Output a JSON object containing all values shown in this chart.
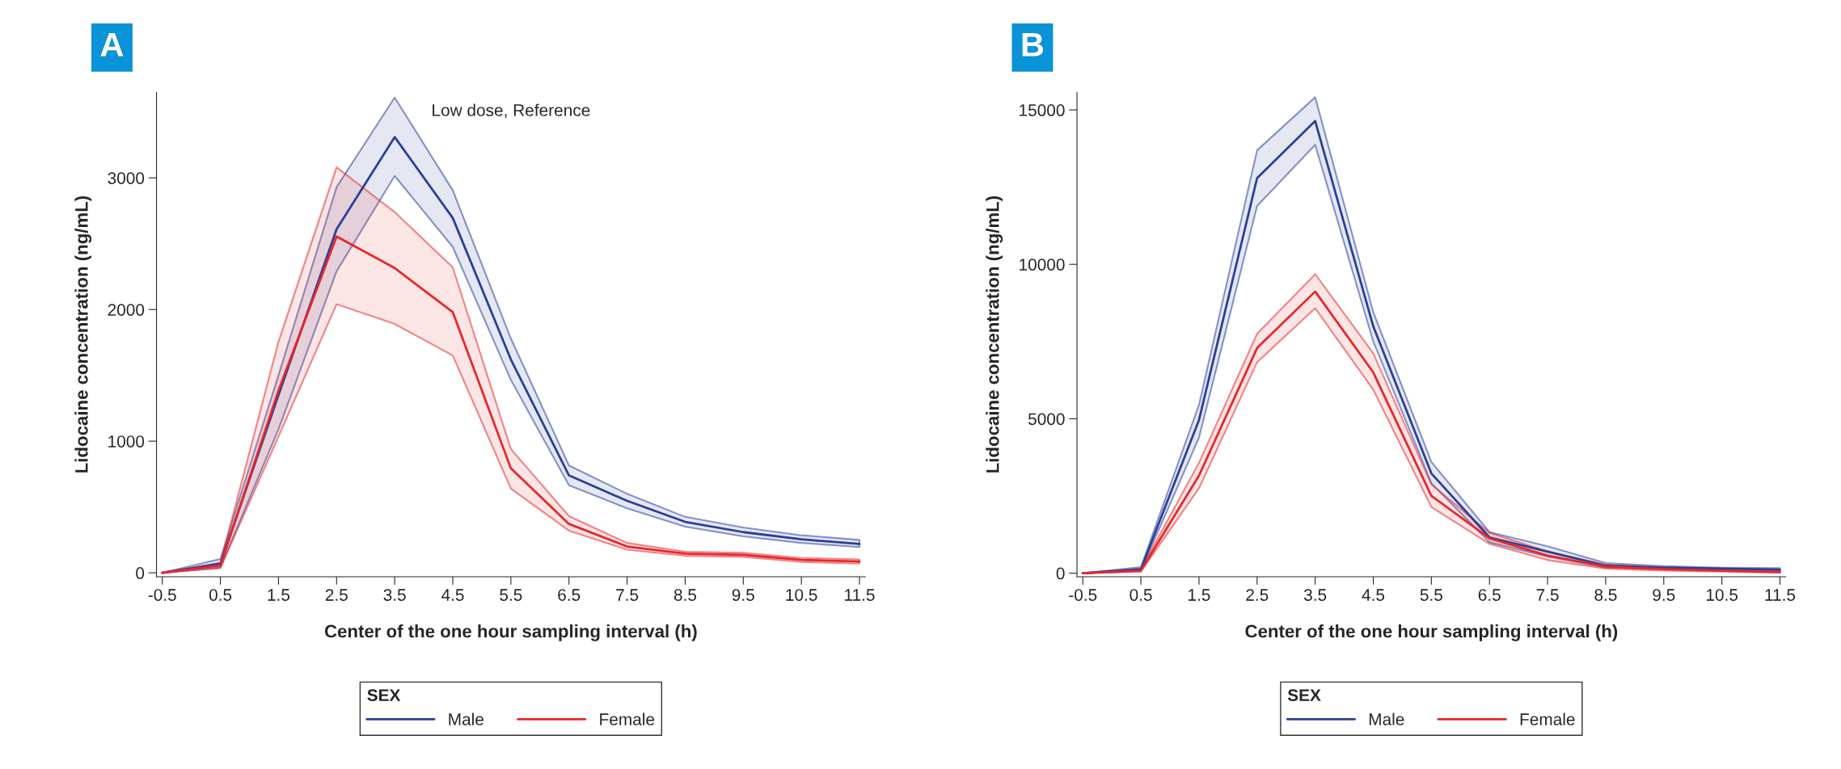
{
  "chart_data": [
    {
      "type": "line",
      "title": "A",
      "xlabel": "Center of the one hour sampling interval (h)",
      "ylabel": "Lidocaine concentration (ng/mL)",
      "legend_title": "SEX",
      "legend": "bottom",
      "annotations": [
        "Low dose, Reference"
      ],
      "x": [
        -0.5,
        0.5,
        1.5,
        2.5,
        3.5,
        4.5,
        5.5,
        6.5,
        7.5,
        8.5,
        9.5,
        10.5,
        11.5
      ],
      "xlim": [
        -0.6,
        11.6
      ],
      "xticks": [
        -0.5,
        0.5,
        1.5,
        2.5,
        3.5,
        4.5,
        5.5,
        6.5,
        7.5,
        8.5,
        9.5,
        10.5,
        11.5
      ],
      "ylim": [
        -30,
        3650
      ],
      "yticks": [
        0,
        1000,
        2000,
        3000
      ],
      "series": [
        {
          "name": "Male",
          "color": "#2b3f97",
          "values": [
            0,
            70,
            1350,
            2610,
            3310,
            2695,
            1620,
            740,
            547,
            387,
            309,
            254,
            219
          ],
          "lower": [
            0,
            40,
            1090,
            2290,
            3015,
            2475,
            1465,
            665,
            490,
            350,
            277,
            227,
            195
          ],
          "upper": [
            0,
            105,
            1500,
            2930,
            3610,
            2905,
            1780,
            815,
            600,
            425,
            344,
            285,
            250
          ]
        },
        {
          "name": "Female",
          "color": "#e8262a",
          "values": [
            0,
            55,
            1385,
            2555,
            2315,
            1980,
            793,
            371,
            200,
            145,
            137,
            98,
            86
          ],
          "lower": [
            0,
            35,
            1035,
            2040,
            1890,
            1650,
            640,
            320,
            176,
            129,
            121,
            82,
            70
          ],
          "upper": [
            0,
            75,
            1755,
            3080,
            2740,
            2320,
            940,
            430,
            227,
            160,
            152,
            113,
            102
          ]
        }
      ]
    },
    {
      "type": "line",
      "title": "B",
      "xlabel": "Center of the one hour sampling interval (h)",
      "ylabel": "Lidocaine concentration (ng/mL)",
      "legend_title": "SEX",
      "legend": "bottom",
      "x": [
        -0.5,
        0.5,
        1.5,
        2.5,
        3.5,
        4.5,
        5.5,
        6.5,
        7.5,
        8.5,
        9.5,
        10.5,
        11.5
      ],
      "xlim": [
        -0.6,
        11.6
      ],
      "xticks": [
        -0.5,
        0.5,
        1.5,
        2.5,
        3.5,
        4.5,
        5.5,
        6.5,
        7.5,
        8.5,
        9.5,
        10.5,
        11.5
      ],
      "ylim": [
        -115,
        15570
      ],
      "yticks": [
        0,
        5000,
        10000,
        15000
      ],
      "series": [
        {
          "name": "Male",
          "color": "#2b3f97",
          "values": [
            0,
            130,
            4960,
            12790,
            14640,
            7990,
            3230,
            1160,
            700,
            245,
            180,
            150,
            115
          ],
          "lower": [
            0,
            80,
            4390,
            11890,
            13870,
            7500,
            2915,
            1000,
            540,
            180,
            130,
            100,
            65
          ],
          "upper": [
            0,
            195,
            5450,
            13690,
            15410,
            8450,
            3600,
            1330,
            870,
            330,
            230,
            180,
            165
          ]
        },
        {
          "name": "Female",
          "color": "#e8262a",
          "values": [
            0,
            80,
            3160,
            7290,
            9120,
            6500,
            2505,
            1130,
            570,
            215,
            130,
            80,
            35
          ],
          "lower": [
            0,
            50,
            2750,
            6830,
            8580,
            5940,
            2145,
            950,
            425,
            150,
            80,
            50,
            15
          ],
          "upper": [
            0,
            130,
            3570,
            7750,
            9680,
            7120,
            2870,
            1310,
            700,
            280,
            180,
            130,
            80
          ]
        }
      ]
    }
  ]
}
